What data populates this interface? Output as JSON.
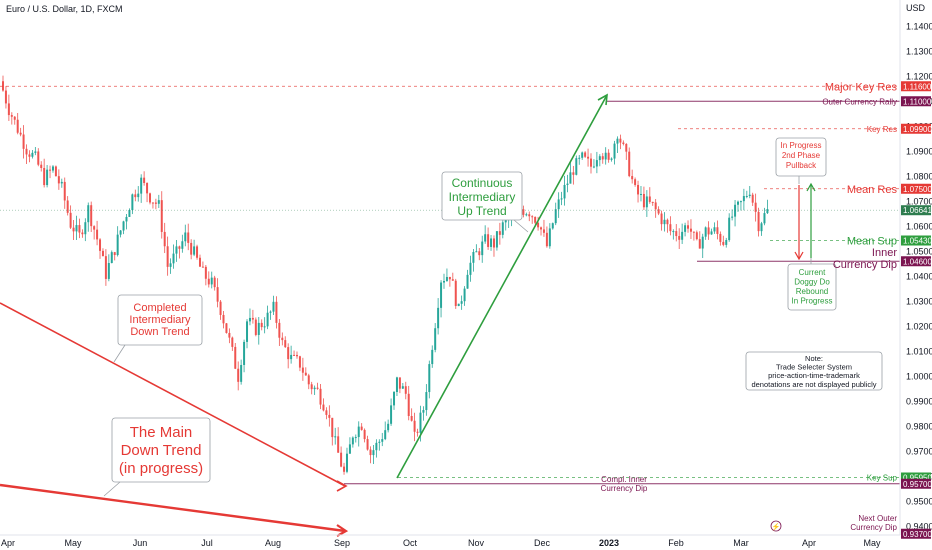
{
  "header": {
    "symbol_title": "Euro / U.S. Dollar, 1D, FXCM",
    "currency": "USD"
  },
  "colors": {
    "up": "#26a69a",
    "down": "#ef5350",
    "major": "#e53935",
    "purple": "#7b1450",
    "green": "#2e9e3e",
    "red": "#e53935",
    "price": "#2e7d4f",
    "muted": "#6a6d78"
  },
  "chart_data": {
    "type": "candlestick",
    "title": "Euro / U.S. Dollar, 1D, FXCM",
    "ylabel": "USD",
    "ylim": [
      0.9365,
      1.1505
    ],
    "x_months": [
      "Apr",
      "May",
      "Jun",
      "Jul",
      "Aug",
      "Sep",
      "Oct",
      "Nov",
      "Dec",
      "2023",
      "Feb",
      "Mar",
      "Apr",
      "May"
    ],
    "y_ticks": [
      "1.14000",
      "1.13000",
      "1.12000",
      "1.11000",
      "1.10000",
      "1.09000",
      "1.08000",
      "1.07000",
      "1.06000",
      "1.05000",
      "1.04000",
      "1.03000",
      "1.02000",
      "1.01000",
      "1.00000",
      "0.99000",
      "0.98000",
      "0.97000",
      "0.96000",
      "0.95000",
      "0.94000"
    ],
    "y_tick_values": [
      1.14,
      1.13,
      1.12,
      1.11,
      1.1,
      1.09,
      1.08,
      1.07,
      1.06,
      1.05,
      1.04,
      1.03,
      1.02,
      1.01,
      1.0,
      0.99,
      0.98,
      0.97,
      0.96,
      0.95,
      0.94
    ],
    "current_price": 1.06641,
    "current_price_label": "1.06641",
    "levels": [
      {
        "name": "Major Key Res",
        "value": 1.116,
        "label": "1.11600",
        "color": "#e53935",
        "style": "dashed"
      },
      {
        "name": "Outer Currency Rally",
        "value": 1.11,
        "label": "1.11000",
        "color": "#7b1450",
        "style": "solid"
      },
      {
        "name": "Key Res",
        "value": 1.099,
        "label": "1.09900",
        "color": "#e53935",
        "style": "dashed"
      },
      {
        "name": "Mean Res",
        "value": 1.075,
        "label": "1.07500",
        "color": "#e53935",
        "style": "dashed"
      },
      {
        "name": "Mean Sup",
        "value": 1.0543,
        "label": "1.05430",
        "color": "#2e9e3e",
        "style": "dashed"
      },
      {
        "name": "Inner Currency Dip",
        "value": 1.046,
        "label": "1.04600",
        "color": "#7b1450",
        "style": "solid"
      },
      {
        "name": "Key Sup",
        "value": 0.9595,
        "label": "0.95950",
        "color": "#2e9e3e",
        "style": "dashed"
      },
      {
        "name": "Compl. Inner Currency Dip",
        "value": 0.957,
        "label": "0.95700",
        "color": "#7b1450",
        "style": "solid"
      },
      {
        "name": "Next Outer Currency Dip",
        "value": 0.937,
        "label": "0.93700",
        "color": "#7b1450",
        "style": "none"
      }
    ],
    "path_points": [
      [
        0,
        1.118
      ],
      [
        3,
        1.107
      ],
      [
        6,
        1.099
      ],
      [
        9,
        1.091
      ],
      [
        12,
        1.087
      ],
      [
        15,
        1.079
      ],
      [
        18,
        1.083
      ],
      [
        21,
        1.075
      ],
      [
        24,
        1.061
      ],
      [
        27,
        1.056
      ],
      [
        30,
        1.067
      ],
      [
        33,
        1.055
      ],
      [
        36,
        1.041
      ],
      [
        39,
        1.051
      ],
      [
        42,
        1.062
      ],
      [
        45,
        1.072
      ],
      [
        48,
        1.078
      ],
      [
        51,
        1.072
      ],
      [
        54,
        1.068
      ],
      [
        57,
        1.044
      ],
      [
        60,
        1.049
      ],
      [
        63,
        1.056
      ],
      [
        66,
        1.049
      ],
      [
        69,
        1.041
      ],
      [
        72,
        1.037
      ],
      [
        75,
        1.027
      ],
      [
        78,
        1.014
      ],
      [
        81,
        1.0
      ],
      [
        84,
        1.022
      ],
      [
        87,
        1.019
      ],
      [
        90,
        1.022
      ],
      [
        93,
        1.027
      ],
      [
        96,
        1.013
      ],
      [
        99,
        1.007
      ],
      [
        102,
        1.005
      ],
      [
        105,
        0.997
      ],
      [
        108,
        0.994
      ],
      [
        111,
        0.987
      ],
      [
        114,
        0.973
      ],
      [
        117,
        0.961
      ],
      [
        120,
        0.977
      ],
      [
        123,
        0.981
      ],
      [
        126,
        0.969
      ],
      [
        129,
        0.974
      ],
      [
        132,
        0.981
      ],
      [
        135,
        0.998
      ],
      [
        138,
        0.993
      ],
      [
        141,
        0.975
      ],
      [
        144,
        0.987
      ],
      [
        147,
        1.013
      ],
      [
        150,
        1.039
      ],
      [
        153,
        1.041
      ],
      [
        156,
        1.026
      ],
      [
        159,
        1.043
      ],
      [
        162,
        1.049
      ],
      [
        165,
        1.054
      ],
      [
        168,
        1.053
      ],
      [
        171,
        1.06
      ],
      [
        174,
        1.064
      ],
      [
        177,
        1.067
      ],
      [
        180,
        1.066
      ],
      [
        183,
        1.062
      ],
      [
        186,
        1.052
      ],
      [
        189,
        1.066
      ],
      [
        192,
        1.075
      ],
      [
        195,
        1.083
      ],
      [
        198,
        1.087
      ],
      [
        201,
        1.084
      ],
      [
        204,
        1.091
      ],
      [
        207,
        1.085
      ],
      [
        210,
        1.098
      ],
      [
        213,
        1.087
      ],
      [
        216,
        1.074
      ],
      [
        219,
        1.07
      ],
      [
        222,
        1.068
      ],
      [
        225,
        1.063
      ],
      [
        228,
        1.058
      ],
      [
        231,
        1.057
      ],
      [
        234,
        1.061
      ],
      [
        237,
        1.052
      ],
      [
        240,
        1.058
      ],
      [
        243,
        1.058
      ],
      [
        246,
        1.054
      ],
      [
        249,
        1.064
      ],
      [
        252,
        1.069
      ],
      [
        255,
        1.075
      ],
      [
        258,
        1.061
      ],
      [
        261,
        1.066
      ]
    ]
  },
  "annotations": {
    "completed_down": "Completed\nIntermediary\nDown Trend",
    "main_down": "The Main\nDown Trend\n(in progress)",
    "continuous_up": "Continuous\nIntermediary\nUp Trend",
    "pullback": "In Progress\n2nd Phase\nPullback",
    "rebound": "Current\nDoggy Do\nRebound\nIn Progress",
    "note": "Note:\nTrade Selecter System\nprice-action-time-trademark\ndenotations are not displayed publicly",
    "inner_line1": "Inner",
    "inner_line2": "Currency Dip",
    "compl_dip": "Compl. Inner\nCurrency Dip",
    "next_outer": "Next Outer\nCurrency Dip"
  }
}
